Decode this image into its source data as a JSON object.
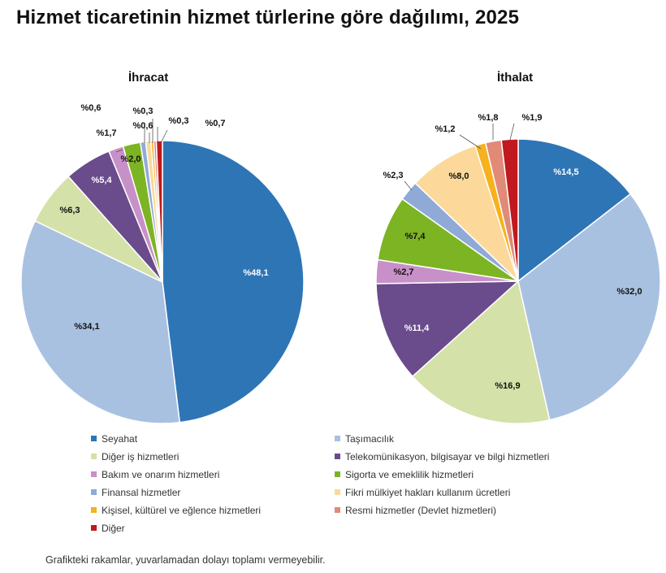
{
  "title": "Hizmet ticaretinin hizmet türlerine göre dağılımı, 2025",
  "note": "Grafikteki rakamlar, yuvarlamadan dolayı toplamı vermeyebilir.",
  "legend": [
    {
      "label": "Seyahat",
      "color": "#2e75b6"
    },
    {
      "label": "Taşımacılık",
      "color": "#a9c1e1"
    },
    {
      "label": "Diğer iş hizmetleri",
      "color": "#d4e1a8"
    },
    {
      "label": "Telekomünikasyon, bilgisayar ve bilgi hizmetleri",
      "color": "#6a4b8b"
    },
    {
      "label": "Bakım ve onarım hizmetleri",
      "color": "#c890c8"
    },
    {
      "label": "Sigorta ve emeklilik hizmetleri",
      "color": "#7db423"
    },
    {
      "label": "Finansal hizmetler",
      "color": "#8faad6"
    },
    {
      "label": "Fikri mülkiyet hakları kullanım ücretleri",
      "color": "#fcd99a"
    },
    {
      "label": "Kişisel, kültürel ve eğlence hizmetleri",
      "color": "#f7b11e"
    },
    {
      "label": "Resmi hizmetler (Devlet hizmetleri)",
      "color": "#e08a77"
    },
    {
      "label": "Diğer",
      "color": "#c0191f"
    }
  ],
  "chart_data": [
    {
      "type": "pie",
      "title": "İhracat",
      "categories": [
        "Seyahat",
        "Taşımacılık",
        "Diğer iş hizmetleri",
        "Telekomünikasyon, bilgisayar ve bilgi hizmetleri",
        "Bakım ve onarım hizmetleri",
        "Sigorta ve emeklilik hizmetleri",
        "Finansal hizmetler",
        "Fikri mülkiyet hakları kullanım ücretleri",
        "Kişisel, kültürel ve eğlence hizmetleri",
        "Resmi hizmetler (Devlet hizmetleri)",
        "Diğer"
      ],
      "values": [
        48.1,
        34.1,
        6.3,
        5.4,
        1.7,
        2.0,
        0.6,
        0.6,
        0.3,
        0.3,
        0.7
      ],
      "labels": [
        "%48,1",
        "%34,1",
        "%6,3",
        "%5,4",
        "%1,7",
        "%2,0",
        "%0,6",
        "%0,6",
        "%0,3",
        "%0,3",
        "%0,7"
      ]
    },
    {
      "type": "pie",
      "title": "İthalat",
      "categories": [
        "Seyahat",
        "Taşımacılık",
        "Diğer iş hizmetleri",
        "Telekomünikasyon, bilgisayar ve bilgi hizmetleri",
        "Bakım ve onarım hizmetleri",
        "Sigorta ve emeklilik hizmetleri",
        "Finansal hizmetler",
        "Fikri mülkiyet hakları kullanım ücretleri",
        "Kişisel, kültürel ve eğlence hizmetleri",
        "Resmi hizmetler (Devlet hizmetleri)",
        "Diğer"
      ],
      "values": [
        14.5,
        32.0,
        16.9,
        11.4,
        2.7,
        7.4,
        2.3,
        8.0,
        1.2,
        1.8,
        1.9
      ],
      "labels": [
        "%14,5",
        "%32,0",
        "%16,9",
        "%11,4",
        "%2,7",
        "%7,4",
        "%2,3",
        "%8,0",
        "%1,2",
        "%1,8",
        "%1,9"
      ]
    }
  ]
}
